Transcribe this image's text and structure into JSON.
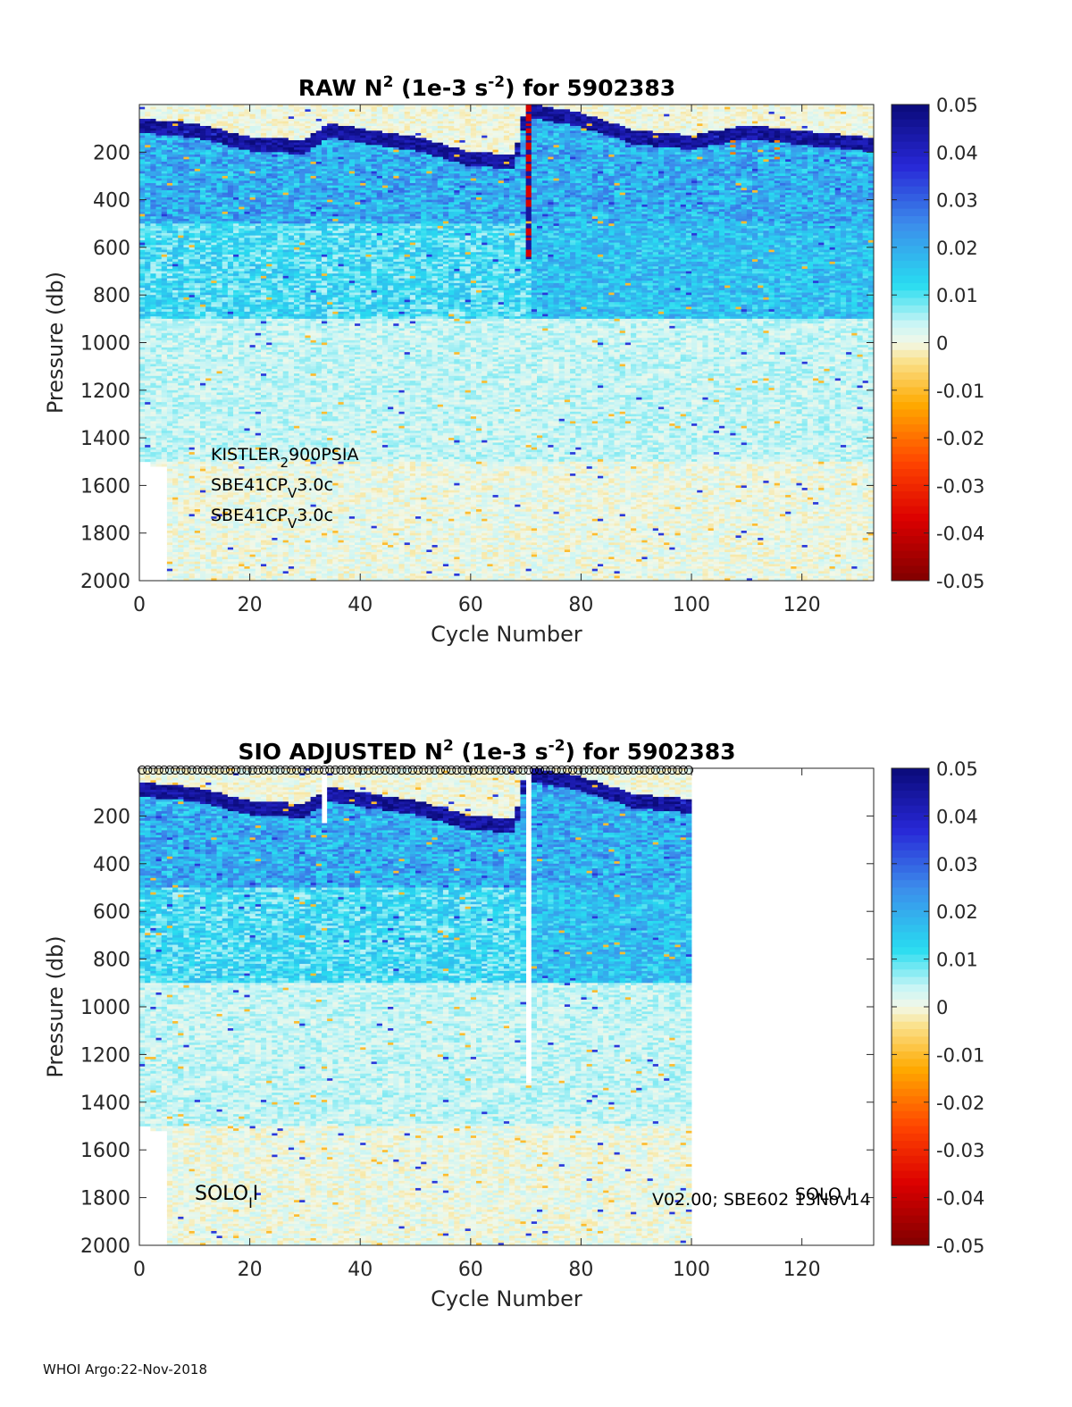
{
  "footer": "WHOI Argo:22-Nov-2018",
  "colorbar": {
    "ticks": [
      "0.05",
      "0.04",
      "0.03",
      "0.02",
      "0.01",
      "0",
      "-0.01",
      "-0.02",
      "-0.03",
      "-0.04",
      "-0.05"
    ],
    "range": [
      -0.05,
      0.05
    ]
  },
  "chart_data": [
    {
      "type": "heatmap",
      "title": {
        "prefix": "RAW N",
        "sup1": "2",
        "mid": " (1e-3 s",
        "sup2": "-2",
        "suffix": ") for 5902383"
      },
      "xlabel": "Cycle Number",
      "ylabel": "Pressure (db)",
      "xticks": [
        "0",
        "20",
        "40",
        "60",
        "80",
        "100",
        "120"
      ],
      "yticks": [
        "200",
        "400",
        "600",
        "800",
        "1000",
        "1200",
        "1400",
        "1600",
        "1800",
        "2000"
      ],
      "xlim": [
        0,
        133
      ],
      "ylim": [
        0,
        2000
      ],
      "data_cycles": [
        0,
        133
      ],
      "y_reversed": true,
      "sensor_labels": [
        {
          "base": "KISTLER",
          "sub": "2",
          "rest": "900PSIA"
        },
        {
          "base": "SBE41CP",
          "sub": "V",
          "rest": "3.0c"
        },
        {
          "base": "SBE41CP",
          "sub": "V",
          "rest": "3.0c"
        }
      ],
      "thermocline_pressure": [
        [
          0,
          100
        ],
        [
          10,
          120
        ],
        [
          20,
          175
        ],
        [
          30,
          190
        ],
        [
          34,
          120
        ],
        [
          40,
          140
        ],
        [
          50,
          175
        ],
        [
          60,
          240
        ],
        [
          68,
          250
        ],
        [
          70,
          35
        ],
        [
          80,
          75
        ],
        [
          90,
          150
        ],
        [
          100,
          170
        ],
        [
          110,
          125
        ],
        [
          120,
          150
        ],
        [
          133,
          180
        ]
      ],
      "value_scale": "1e-3 s^-2",
      "clim": [
        -0.05,
        0.05
      ]
    },
    {
      "type": "heatmap",
      "title": {
        "prefix": "SIO  ADJUSTED N",
        "sup1": "2",
        "mid": " (1e-3 s",
        "sup2": "-2",
        "suffix": ") for 5902383"
      },
      "xlabel": "Cycle Number",
      "ylabel": "Pressure (db)",
      "xticks": [
        "0",
        "20",
        "40",
        "60",
        "80",
        "100",
        "120"
      ],
      "yticks": [
        "200",
        "400",
        "600",
        "800",
        "1000",
        "1200",
        "1400",
        "1600",
        "1800",
        "2000"
      ],
      "xlim": [
        0,
        133
      ],
      "ylim": [
        0,
        2000
      ],
      "data_cycles": [
        0,
        100
      ],
      "y_reversed": true,
      "qc_marker_cycles": [
        1,
        100
      ],
      "labels": [
        {
          "base": "SOLO",
          "sub": "I",
          "rest": "I"
        },
        {
          "text": "V02.00; SBE602 13Nov14"
        },
        {
          "text": "SOLO I"
        }
      ],
      "thermocline_pressure": [
        [
          0,
          100
        ],
        [
          10,
          120
        ],
        [
          20,
          175
        ],
        [
          30,
          190
        ],
        [
          34,
          120
        ],
        [
          40,
          140
        ],
        [
          50,
          175
        ],
        [
          60,
          240
        ],
        [
          68,
          250
        ],
        [
          70,
          35
        ],
        [
          80,
          75
        ],
        [
          90,
          150
        ],
        [
          100,
          170
        ]
      ],
      "clim": [
        -0.05,
        0.05
      ]
    }
  ]
}
